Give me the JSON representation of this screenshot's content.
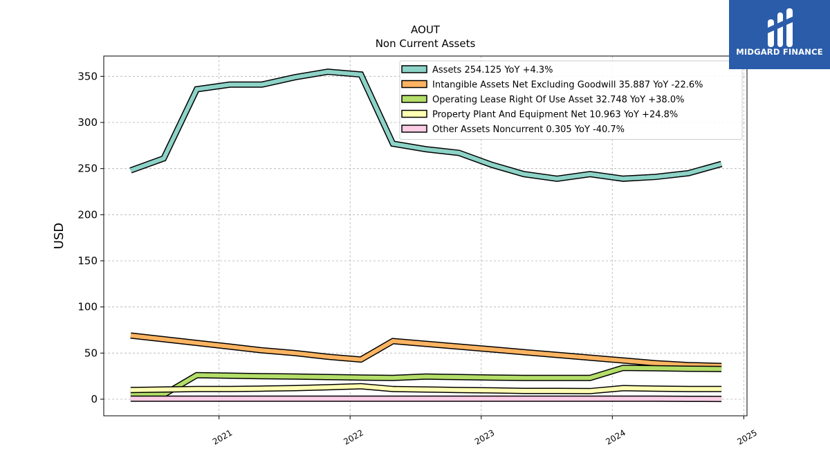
{
  "chart_data": {
    "type": "line",
    "title": "AOUT",
    "subtitle": "Non Current  Assets",
    "ylabel": "USD",
    "xlabel": "",
    "ylim": [
      -18,
      372
    ],
    "yticks": [
      0,
      50,
      100,
      150,
      200,
      250,
      300,
      350
    ],
    "xlim": [
      "2020-02-15",
      "2025-01-10"
    ],
    "xticks": [
      "2021-01-01",
      "2022-01-01",
      "2023-01-01",
      "2024-01-01",
      "2025-01-01"
    ],
    "xtick_labels": [
      "2021",
      "2022",
      "2023",
      "2024",
      "2025"
    ],
    "grid": true,
    "legend_position": "top-right",
    "x": [
      "2020-04-30",
      "2020-07-31",
      "2020-10-31",
      "2021-01-31",
      "2021-04-30",
      "2021-07-31",
      "2021-10-31",
      "2022-01-31",
      "2022-04-30",
      "2022-07-31",
      "2022-10-31",
      "2023-01-31",
      "2023-04-30",
      "2023-07-31",
      "2023-10-31",
      "2024-01-31",
      "2024-04-30",
      "2024-07-31",
      "2024-10-31"
    ],
    "series": [
      {
        "name": "Assets  254.125 YoY +4.3%",
        "color": "#8dd3c7",
        "values": [
          248,
          261,
          336,
          341,
          341,
          349,
          355,
          352,
          277,
          271,
          267,
          254,
          244,
          239,
          244,
          239,
          241,
          245,
          255
        ]
      },
      {
        "name": "Intangible Assets Net Excluding Goodwill  35.887 YoY -22.6%",
        "color": "#fdb462",
        "values": [
          69,
          65,
          61,
          57,
          53,
          50,
          46,
          43,
          63,
          60,
          57,
          54,
          51,
          48,
          45,
          42,
          39,
          37,
          36
        ]
      },
      {
        "name": "Operating Lease Right Of Use Asset  32.748 YoY +38.0%",
        "color": "#b3de69",
        "values": [
          5,
          5,
          26,
          25.5,
          25,
          24.5,
          24,
          23.5,
          23,
          24.5,
          24,
          23.5,
          23,
          23,
          23,
          34,
          33.5,
          33,
          32.7
        ]
      },
      {
        "name": "Property Plant And Equipment Net  10.963 YoY +24.8%",
        "color": "#ffffb3",
        "values": [
          10,
          10.5,
          11,
          11,
          11.5,
          12,
          13,
          14,
          11,
          10.5,
          10,
          9.5,
          9,
          9,
          8.8,
          12,
          11.5,
          11,
          11
        ]
      },
      {
        "name": "Other Assets Noncurrent  0.305 YoY -40.7%",
        "color": "#fccde5",
        "values": [
          0.5,
          0.5,
          0.6,
          0.6,
          0.6,
          0.6,
          0.6,
          0.6,
          0.6,
          0.6,
          0.6,
          0.6,
          0.6,
          0.6,
          0.6,
          0.6,
          0.5,
          0.4,
          0.305
        ]
      }
    ]
  },
  "watermark": {
    "text": "MIDGARD FINANCE",
    "background": "#2a5caa"
  }
}
